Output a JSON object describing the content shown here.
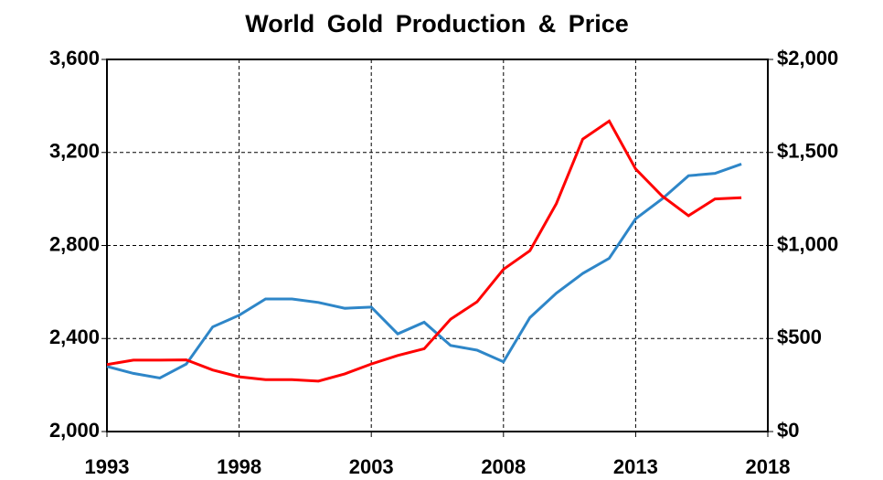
{
  "chart_data": {
    "type": "line",
    "title": "World Gold Production & Price",
    "x": [
      1993,
      1994,
      1995,
      1996,
      1997,
      1998,
      1999,
      2000,
      2001,
      2002,
      2003,
      2004,
      2005,
      2006,
      2007,
      2008,
      2009,
      2010,
      2011,
      2012,
      2013,
      2014,
      2015,
      2016,
      2017
    ],
    "series": [
      {
        "color": "#2e86c8",
        "axis": "y",
        "values": [
          2280,
          2250,
          2230,
          2290,
          2450,
          2500,
          2570,
          2570,
          2555,
          2530,
          2535,
          2420,
          2470,
          2370,
          2350,
          2300,
          2490,
          2595,
          2680,
          2745,
          2915,
          3000,
          3100,
          3110,
          3150
        ]
      },
      {
        "color": "#ff0000",
        "axis": "y2",
        "values": [
          360,
          384,
          384,
          385,
          331,
          294,
          279,
          279,
          271,
          310,
          363,
          409,
          445,
          604,
          697,
          872,
          972,
          1225,
          1572,
          1669,
          1411,
          1266,
          1160,
          1250,
          1257
        ]
      }
    ],
    "xlim": [
      1993,
      2018
    ],
    "xticks": [
      1993,
      1998,
      2003,
      2008,
      2013,
      2018
    ],
    "ylim": [
      2000,
      3600
    ],
    "yticks": [
      {
        "value": 2000,
        "label": "2,000"
      },
      {
        "value": 2400,
        "label": "2,400"
      },
      {
        "value": 2800,
        "label": "2,800"
      },
      {
        "value": 3200,
        "label": "3,200"
      },
      {
        "value": 3600,
        "label": "3,600"
      }
    ],
    "y2lim": [
      0,
      2000
    ],
    "y2ticks": [
      {
        "value": 0,
        "label": "$0"
      },
      {
        "value": 500,
        "label": "$500"
      },
      {
        "value": 1000,
        "label": "$1,000"
      },
      {
        "value": 1500,
        "label": "$1,500"
      },
      {
        "value": 2000,
        "label": "$2,000"
      }
    ],
    "grid": true
  }
}
